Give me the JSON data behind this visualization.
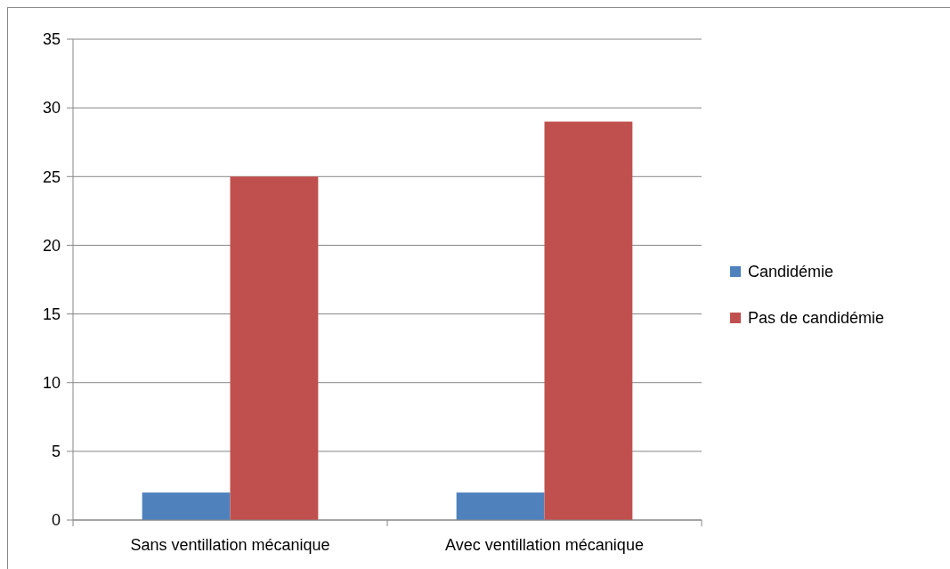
{
  "chart_data": {
    "type": "bar",
    "categories": [
      "Sans ventillation mécanique",
      "Avec ventillation mécanique"
    ],
    "series": [
      {
        "name": "Candidémie",
        "color": "#4f81bd",
        "values": [
          2,
          2
        ]
      },
      {
        "name": "Pas de candidémie",
        "color": "#c0504d",
        "values": [
          25,
          29
        ]
      }
    ],
    "ylim": [
      0,
      35
    ],
    "yticks": [
      0,
      5,
      10,
      15,
      20,
      25,
      30,
      35
    ],
    "grid": "y",
    "legend": "right"
  }
}
